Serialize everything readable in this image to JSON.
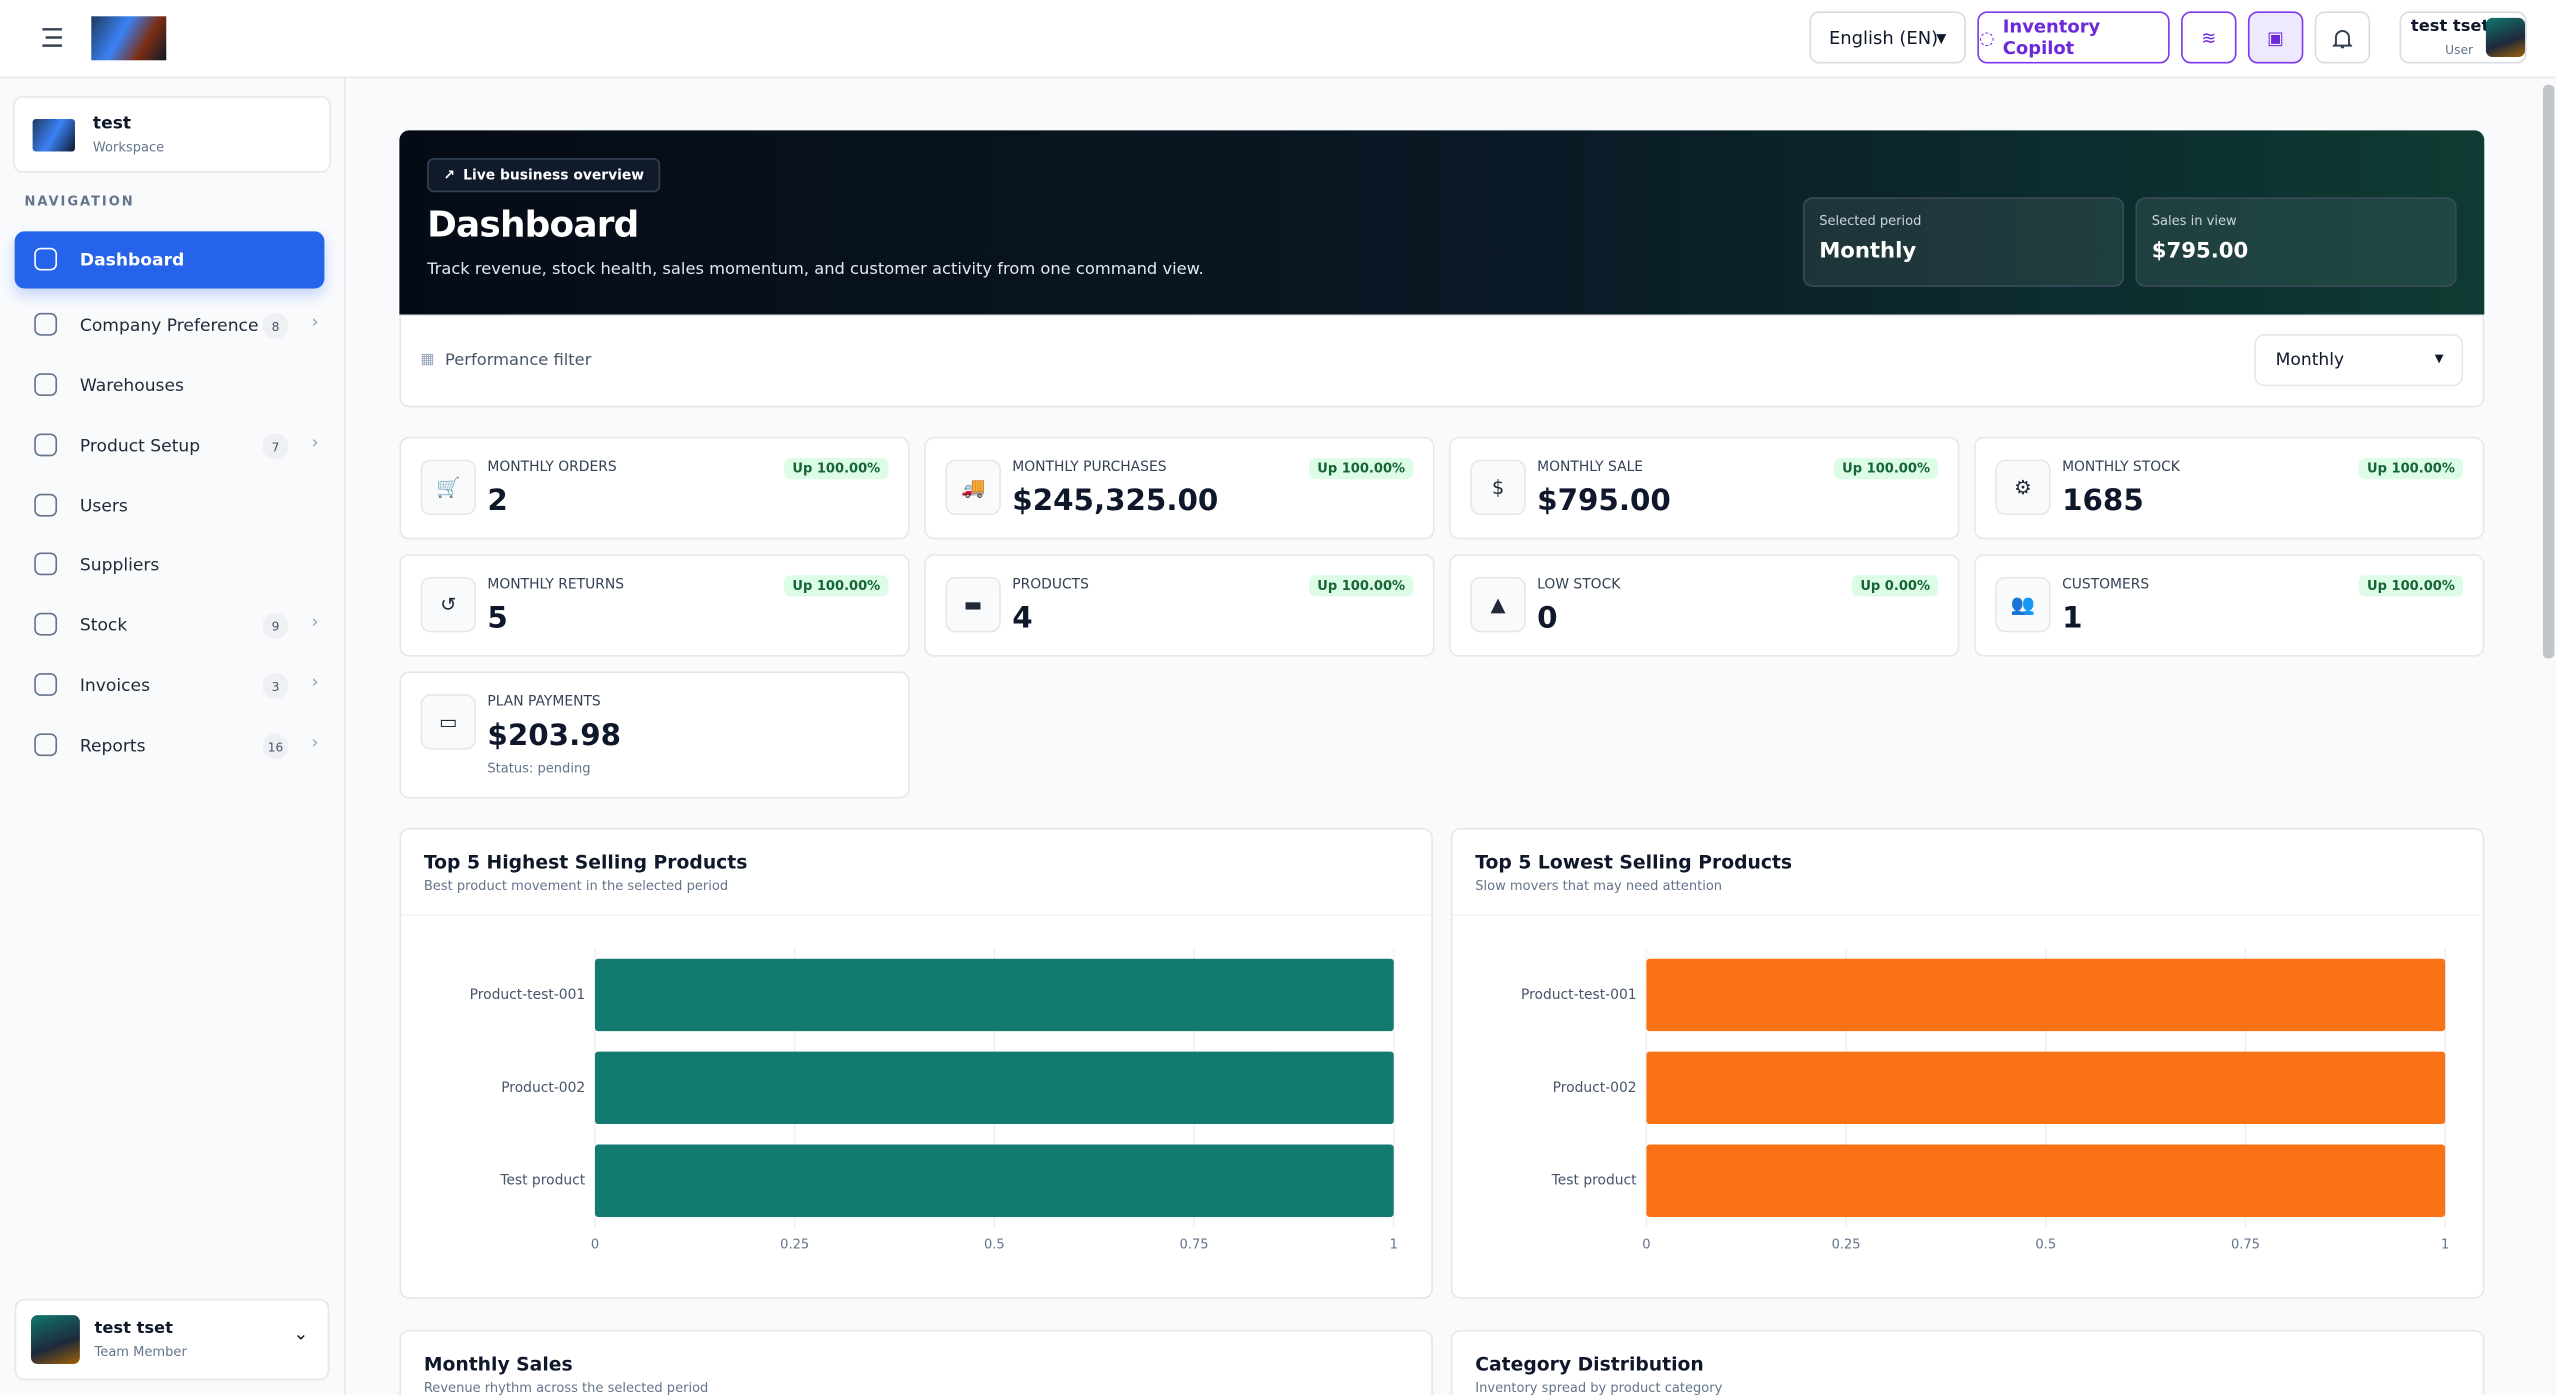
{
  "topbar": {
    "language": "English (EN)",
    "copilot": "Inventory Copilot",
    "user_name": "test tset",
    "user_role": "User"
  },
  "sidebar": {
    "workspace_name": "test",
    "workspace_label": "Workspace",
    "nav_heading": "NAVIGATION",
    "items": [
      {
        "label": "Dashboard"
      },
      {
        "label": "Company Preference",
        "count": 8
      },
      {
        "label": "Warehouses"
      },
      {
        "label": "Product Setup",
        "count": 7
      },
      {
        "label": "Users"
      },
      {
        "label": "Suppliers"
      },
      {
        "label": "Stock",
        "count": 9
      },
      {
        "label": "Invoices",
        "count": 3
      },
      {
        "label": "Reports",
        "count": 16
      }
    ],
    "footer_name": "test tset",
    "footer_role": "Team Member"
  },
  "hero": {
    "badge": "Live business overview",
    "title": "Dashboard",
    "subtitle": "Track revenue, stock health, sales momentum, and customer activity from one command view.",
    "period_label": "Selected period",
    "period": "Monthly",
    "sales_label": "Sales in view",
    "sales": "$795.00"
  },
  "filter": {
    "label": "Performance filter",
    "selected": "Monthly"
  },
  "stats": [
    {
      "label": "MONTHLY ORDERS",
      "value": "2",
      "change": "Up 100.00%"
    },
    {
      "label": "MONTHLY PURCHASES",
      "value": "$245,325.00",
      "change": "Up 100.00%"
    },
    {
      "label": "MONTHLY SALE",
      "value": "$795.00",
      "change": "Up 100.00%"
    },
    {
      "label": "MONTHLY STOCK",
      "value": "1685",
      "change": "Up 100.00%"
    },
    {
      "label": "MONTHLY RETURNS",
      "value": "5",
      "change": "Up 100.00%"
    },
    {
      "label": "PRODUCTS",
      "value": "4",
      "change": "Up 100.00%"
    },
    {
      "label": "LOW STOCK",
      "value": "0",
      "change": "Up 0.00%"
    },
    {
      "label": "CUSTOMERS",
      "value": "1",
      "change": "Up 100.00%"
    },
    {
      "label": "PLAN PAYMENTS",
      "value": "$203.98",
      "note": "Status: pending"
    }
  ],
  "chart_data": [
    {
      "type": "bar",
      "orientation": "horizontal",
      "title": "Top 5 Highest Selling Products",
      "subtitle": "Best product movement in the selected period",
      "categories": [
        "Product-test-001",
        "Product-002",
        "Test product"
      ],
      "values": [
        1,
        1,
        1
      ],
      "color": "#127a6e",
      "xlim": [
        0,
        1
      ],
      "xticks": [
        0,
        0.25,
        0.5,
        0.75,
        1
      ],
      "grid": true
    },
    {
      "type": "bar",
      "orientation": "horizontal",
      "title": "Top 5 Lowest Selling Products",
      "subtitle": "Slow movers that may need attention",
      "categories": [
        "Product-test-001",
        "Product-002",
        "Test product"
      ],
      "values": [
        1,
        1,
        1
      ],
      "color": "#f97316",
      "xlim": [
        0,
        1
      ],
      "xticks": [
        0,
        0.25,
        0.5,
        0.75,
        1
      ],
      "grid": true
    }
  ],
  "bottom_cards": [
    {
      "title": "Monthly Sales",
      "subtitle": "Revenue rhythm across the selected period"
    },
    {
      "title": "Category Distribution",
      "subtitle": "Inventory spread by product category"
    }
  ]
}
